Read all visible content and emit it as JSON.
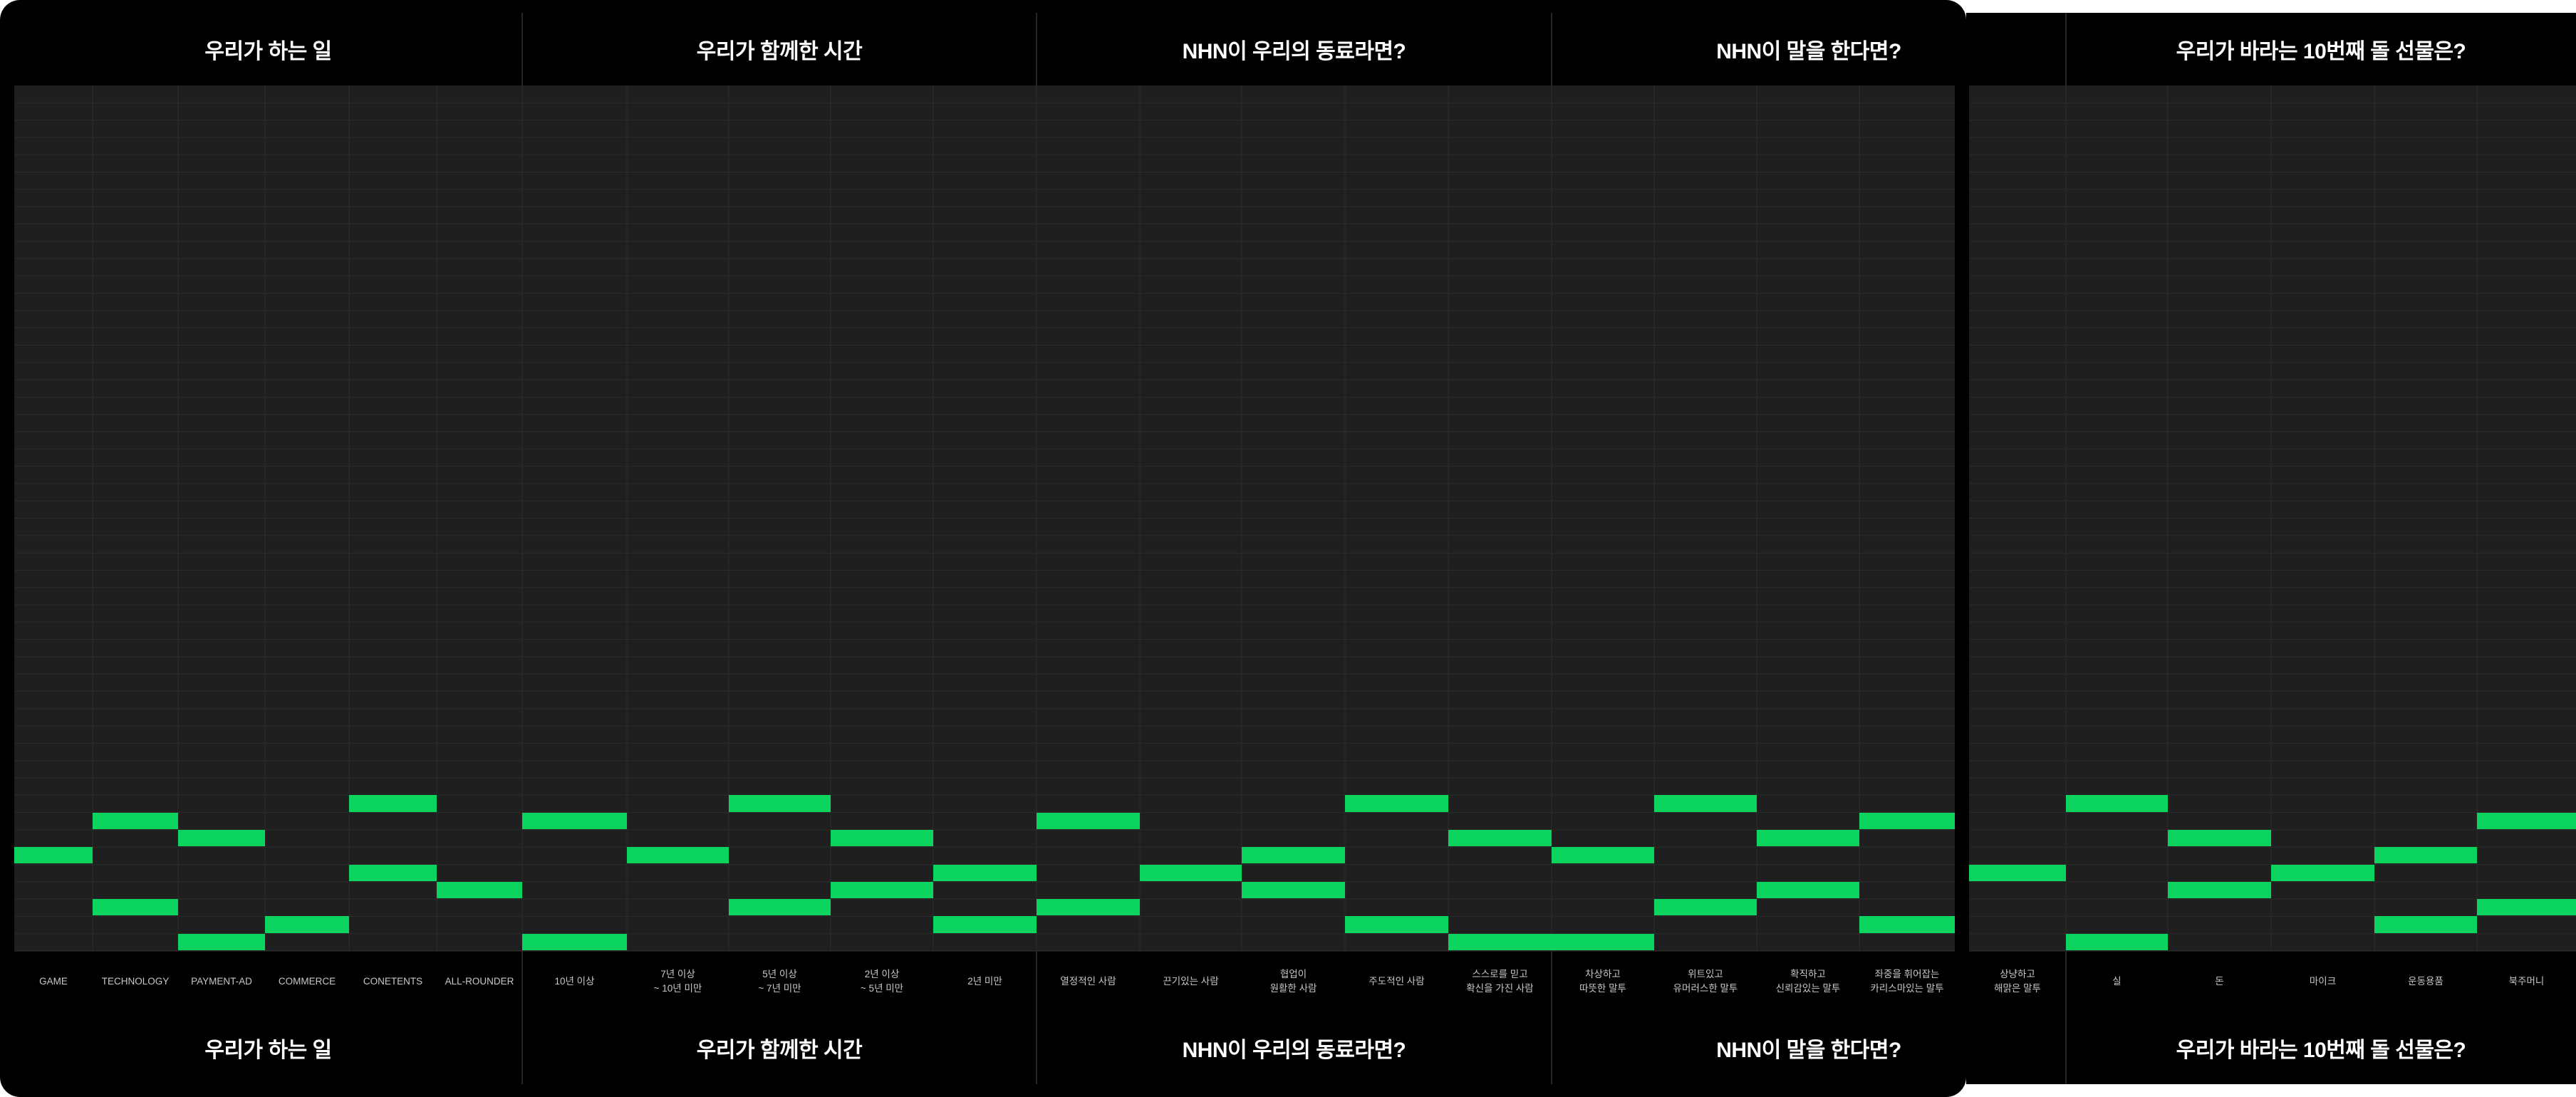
{
  "colors": {
    "background": "#000000",
    "grid_background": "#1f1f1f",
    "grid_line": "#2c2c2c",
    "accent": "#0bd45e",
    "label_text": "#c8c8c8",
    "title_text": "#ffffff"
  },
  "sections": [
    {
      "title": "우리가 하는 일",
      "columns": [
        {
          "label": "GAME",
          "levels": [
            6
          ]
        },
        {
          "label": "TECHNOLOGY",
          "levels": [
            8,
            3
          ]
        },
        {
          "label": "PAYMENT-AD",
          "levels": [
            7,
            1
          ]
        },
        {
          "label": "COMMERCE",
          "levels": [
            2
          ]
        },
        {
          "label": "CONETENTS",
          "levels": [
            9,
            5
          ]
        },
        {
          "label": "ALL-ROUNDER",
          "levels": [
            4
          ]
        }
      ]
    },
    {
      "title": "우리가 함께한 시간",
      "columns": [
        {
          "label": "10년 이상",
          "levels": [
            8,
            1
          ]
        },
        {
          "label": "7년 이상\n~ 10년 미만",
          "levels": [
            6
          ]
        },
        {
          "label": "5년 이상\n~ 7년 미만",
          "levels": [
            9,
            3
          ]
        },
        {
          "label": "2년 이상\n~ 5년 미만",
          "levels": [
            7,
            4
          ]
        },
        {
          "label": "2년 미만",
          "levels": [
            5,
            2
          ]
        }
      ]
    },
    {
      "title": "NHN이 우리의 동료라면?",
      "columns": [
        {
          "label": "열정적인 사람",
          "levels": [
            8,
            3
          ]
        },
        {
          "label": "끈기있는 사람",
          "levels": [
            5
          ]
        },
        {
          "label": "협업이\n원활한 사람",
          "levels": [
            6,
            4
          ]
        },
        {
          "label": "주도적인 사람",
          "levels": [
            9,
            2
          ]
        },
        {
          "label": "스스로를 믿고\n확신을 가진 사람",
          "levels": [
            7,
            1
          ]
        }
      ]
    },
    {
      "title": "NHN이 말을 한다면?",
      "columns": [
        {
          "label": "차상하고\n따뜻한 말투",
          "levels": [
            6,
            1
          ]
        },
        {
          "label": "위트있고\n유머러스한 말투",
          "levels": [
            9,
            3
          ]
        },
        {
          "label": "확직하고\n신뢰감있는 말투",
          "levels": [
            7,
            4
          ]
        },
        {
          "label": "좌중을 휘어잡는\n카리스마있는 말투",
          "levels": [
            8,
            2
          ]
        }
      ]
    },
    {
      "title": "우리가 바라는 10번째 돌 선물은?",
      "columns": [
        {
          "label": "상냥하고\n해맑은 말투",
          "levels": [
            5
          ]
        },
        {
          "label": "실",
          "levels": [
            9,
            1
          ]
        },
        {
          "label": "돈",
          "levels": [
            7,
            4
          ]
        },
        {
          "label": "마이크",
          "levels": [
            5
          ]
        },
        {
          "label": "운동용품",
          "levels": [
            6,
            2
          ]
        },
        {
          "label": "북주머니",
          "levels": [
            8,
            3
          ]
        }
      ]
    }
  ]
}
